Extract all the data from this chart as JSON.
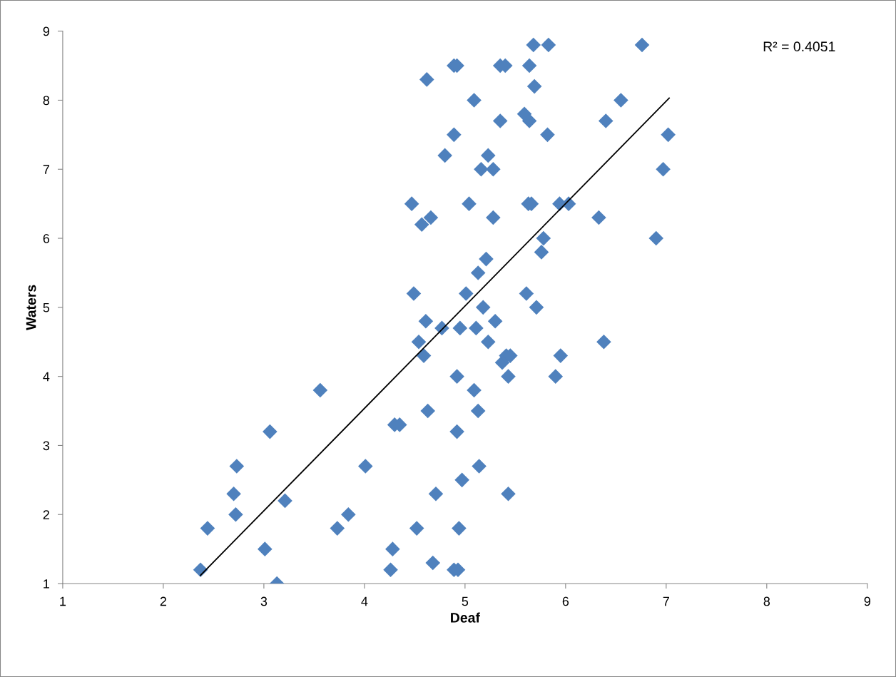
{
  "chart_data": {
    "type": "scatter",
    "xlabel": "Deaf",
    "ylabel": "Waters",
    "xlim": [
      1,
      9
    ],
    "xticks": [
      1,
      2,
      3,
      4,
      5,
      6,
      7,
      8,
      9
    ],
    "ylim": [
      1,
      9
    ],
    "yticks": [
      1,
      2,
      3,
      4,
      5,
      6,
      7,
      8,
      9
    ],
    "grid": false,
    "legend": false,
    "annotations": [
      "R² = 0.4051"
    ],
    "series": [
      {
        "marker": "diamond",
        "color": "#4f81bd",
        "x": [
          2.37,
          2.44,
          2.7,
          2.73,
          2.72,
          3.01,
          3.06,
          3.13,
          3.21,
          3.56,
          3.73,
          3.84,
          4.01,
          4.26,
          4.28,
          4.3,
          4.35,
          4.47,
          4.49,
          4.52,
          4.54,
          4.57,
          4.59,
          4.61,
          4.62,
          4.63,
          4.66,
          4.68,
          4.71,
          4.77,
          4.8,
          4.89,
          4.89,
          4.89,
          4.92,
          4.92,
          4.92,
          4.93,
          4.94,
          4.95,
          4.97,
          5.01,
          5.04,
          5.09,
          5.09,
          5.11,
          5.13,
          5.13,
          5.14,
          5.16,
          5.18,
          5.21,
          5.23,
          5.23,
          5.28,
          5.28,
          5.3,
          5.35,
          5.35,
          5.37,
          5.4,
          5.41,
          5.43,
          5.43,
          5.45,
          5.59,
          5.61,
          5.63,
          5.64,
          5.64,
          5.66,
          5.68,
          5.69,
          5.71,
          5.76,
          5.78,
          5.82,
          5.83,
          5.9,
          5.94,
          5.95,
          6.03,
          6.33,
          6.38,
          6.4,
          6.55,
          6.76,
          6.9,
          6.97,
          7.02
        ],
        "values": [
          1.2,
          1.8,
          2.3,
          2.7,
          2.0,
          1.5,
          3.2,
          1.0,
          2.2,
          3.8,
          1.8,
          2.0,
          2.7,
          1.2,
          1.5,
          3.3,
          3.3,
          6.5,
          5.2,
          1.8,
          4.5,
          6.2,
          4.3,
          4.8,
          8.3,
          3.5,
          6.3,
          1.3,
          2.3,
          4.7,
          7.2,
          1.2,
          7.5,
          8.5,
          8.5,
          4.0,
          3.2,
          1.2,
          1.8,
          4.7,
          2.5,
          5.2,
          6.5,
          8.0,
          3.8,
          4.7,
          5.5,
          3.5,
          2.7,
          7.0,
          5.0,
          5.7,
          4.5,
          7.2,
          7.0,
          6.3,
          4.8,
          8.5,
          7.7,
          4.2,
          8.5,
          4.3,
          4.0,
          2.3,
          4.3,
          7.8,
          5.2,
          6.5,
          8.5,
          7.7,
          6.5,
          8.8,
          8.2,
          5.0,
          5.8,
          6.0,
          7.5,
          8.8,
          4.0,
          6.5,
          4.3,
          6.5,
          6.3,
          4.5,
          7.7,
          8.0,
          8.8,
          6.0,
          7.0,
          7.5
        ]
      },
      {
        "type": "line",
        "marker": "none",
        "color": "#000000",
        "x": [
          2.37,
          7.03
        ],
        "values": [
          1.12,
          8.03
        ]
      }
    ]
  }
}
